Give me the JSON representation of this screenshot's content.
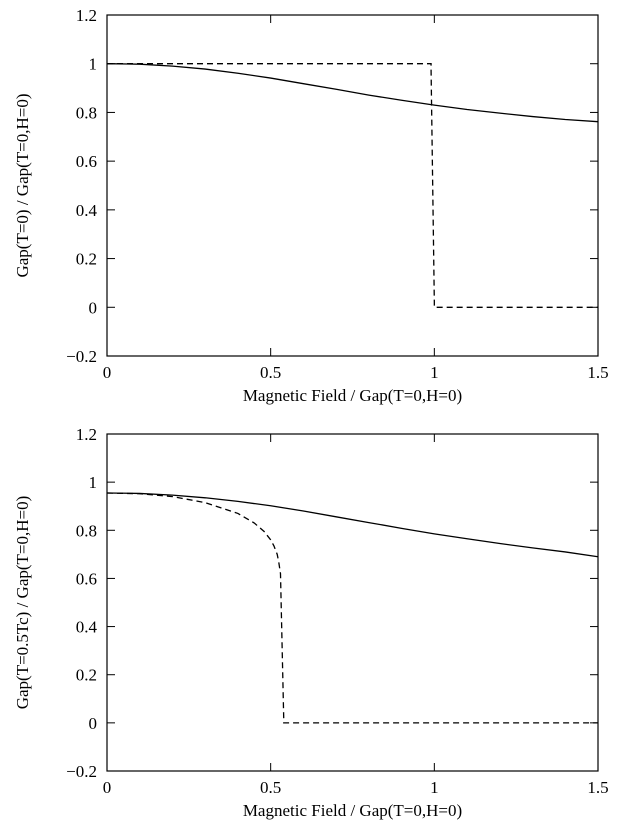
{
  "chart_data": [
    {
      "type": "line",
      "xlabel": "Magnetic Field / Gap(T=0,H=0)",
      "ylabel": "Gap(T=0) / Gap(T=0,H=0)",
      "xlim": [
        0,
        1.5
      ],
      "ylim": [
        -0.2,
        1.2
      ],
      "xticks": [
        0,
        0.5,
        1,
        1.5
      ],
      "xtick_labels": [
        "0",
        "0.5",
        "1",
        "1.5"
      ],
      "yticks": [
        -0.2,
        0,
        0.2,
        0.4,
        0.6,
        0.8,
        1,
        1.2
      ],
      "ytick_labels": [
        "−0.2",
        "0",
        "0.2",
        "0.4",
        "0.6",
        "0.8",
        "1",
        "1.2"
      ],
      "grid": false,
      "series": [
        {
          "style": "solid",
          "x": [
            0,
            0.1,
            0.2,
            0.3,
            0.4,
            0.5,
            0.6,
            0.7,
            0.8,
            0.9,
            1.0,
            1.1,
            1.2,
            1.3,
            1.4,
            1.5
          ],
          "y": [
            1.0,
            0.998,
            0.99,
            0.978,
            0.961,
            0.941,
            0.918,
            0.895,
            0.871,
            0.85,
            0.83,
            0.812,
            0.797,
            0.783,
            0.771,
            0.762
          ]
        },
        {
          "style": "dashed",
          "x": [
            0,
            0.99,
            0.99,
            1.0,
            1.0,
            1.5
          ],
          "y": [
            1.0,
            1.0,
            0.98,
            0.02,
            0.0,
            0.0
          ]
        }
      ]
    },
    {
      "type": "line",
      "xlabel": "Magnetic Field / Gap(T=0,H=0)",
      "ylabel": "Gap(T=0.5Tc) / Gap(T=0,H=0)",
      "xlim": [
        0,
        1.5
      ],
      "ylim": [
        -0.2,
        1.2
      ],
      "xticks": [
        0,
        0.5,
        1,
        1.5
      ],
      "xtick_labels": [
        "0",
        "0.5",
        "1",
        "1.5"
      ],
      "yticks": [
        -0.2,
        0,
        0.2,
        0.4,
        0.6,
        0.8,
        1,
        1.2
      ],
      "ytick_labels": [
        "−0.2",
        "0",
        "0.2",
        "0.4",
        "0.6",
        "0.8",
        "1",
        "1.2"
      ],
      "grid": false,
      "series": [
        {
          "style": "solid",
          "x": [
            0,
            0.1,
            0.2,
            0.3,
            0.4,
            0.5,
            0.6,
            0.7,
            0.8,
            0.9,
            1.0,
            1.1,
            1.2,
            1.3,
            1.4,
            1.5
          ],
          "y": [
            0.955,
            0.953,
            0.946,
            0.935,
            0.92,
            0.902,
            0.88,
            0.856,
            0.832,
            0.808,
            0.785,
            0.765,
            0.745,
            0.727,
            0.71,
            0.69
          ]
        },
        {
          "style": "dashed",
          "x": [
            0,
            0.1,
            0.2,
            0.3,
            0.4,
            0.45,
            0.48,
            0.5,
            0.51,
            0.52,
            0.525,
            0.53,
            0.54,
            0.54,
            1.5
          ],
          "y": [
            0.955,
            0.952,
            0.94,
            0.915,
            0.87,
            0.83,
            0.795,
            0.76,
            0.735,
            0.7,
            0.665,
            0.62,
            0.01,
            0.0,
            0.0
          ]
        }
      ]
    }
  ]
}
